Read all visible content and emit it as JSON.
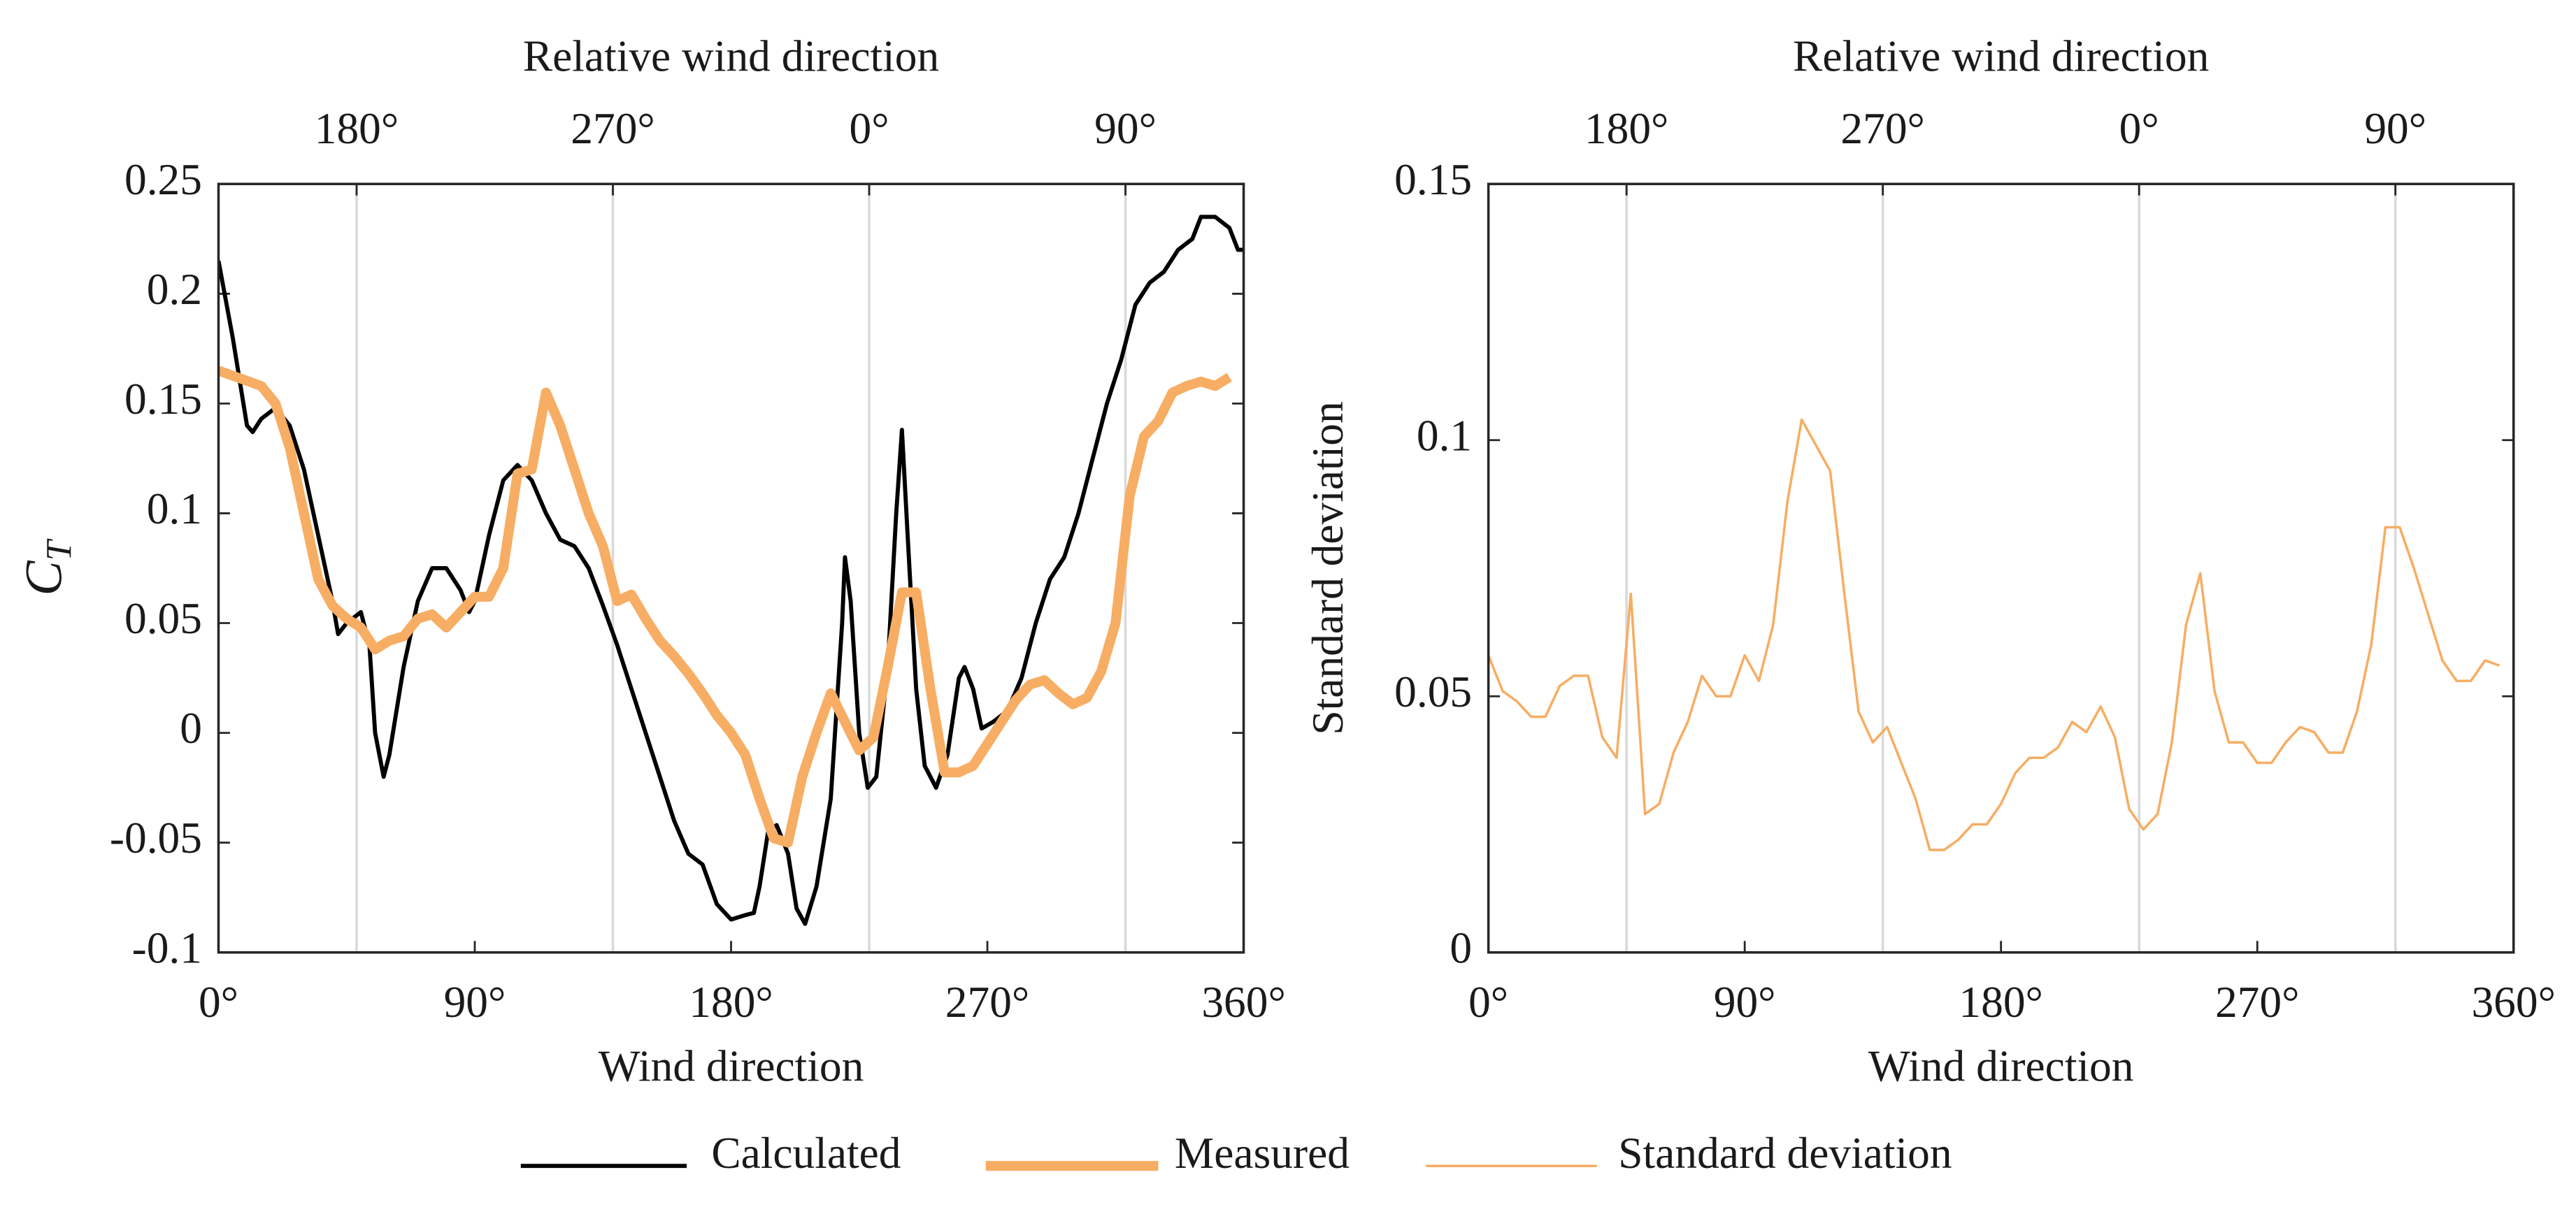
{
  "chart_data": [
    {
      "type": "line",
      "x2label": "Relative wind direction",
      "xlabel": "Wind direction",
      "ylabel": {
        "text": "C",
        "subscript": "T"
      },
      "xlim": [
        0,
        360
      ],
      "ylim": [
        -0.1,
        0.25
      ],
      "xticks": [
        {
          "value": 0,
          "label": "0°"
        },
        {
          "value": 90,
          "label": "90°"
        },
        {
          "value": 180,
          "label": "180°"
        },
        {
          "value": 270,
          "label": "270°"
        },
        {
          "value": 360,
          "label": "360°"
        }
      ],
      "x2ticks": [
        {
          "value": 48.5,
          "label": "180°"
        },
        {
          "value": 138.5,
          "label": "270°"
        },
        {
          "value": 228.5,
          "label": "0°"
        },
        {
          "value": 318.5,
          "label": "90°"
        }
      ],
      "yticks": [
        -0.1,
        -0.05,
        0,
        0.05,
        0.1,
        0.15,
        0.2,
        0.25
      ],
      "grid": "x2",
      "series": [
        {
          "name": "Calculated",
          "color": "#000000",
          "linewidth": 2.5,
          "x": [
            0,
            5,
            10,
            12,
            15,
            20,
            25,
            30,
            35,
            40,
            42,
            45,
            50,
            53,
            55,
            58,
            60,
            65,
            70,
            75,
            80,
            85,
            88,
            90,
            95,
            100,
            105,
            110,
            115,
            120,
            125,
            130,
            135,
            140,
            145,
            150,
            155,
            160,
            165,
            170,
            175,
            180,
            185,
            188,
            190,
            193,
            196,
            200,
            203,
            206,
            210,
            215,
            219,
            220,
            222,
            225,
            228,
            231,
            235,
            238,
            240,
            242,
            245,
            248,
            252,
            256,
            260,
            262,
            265,
            268,
            272,
            277,
            282,
            287,
            292,
            297,
            302,
            307,
            312,
            317,
            322,
            327,
            332,
            337,
            342,
            345,
            350,
            355,
            358,
            360
          ],
          "values": [
            0.215,
            0.18,
            0.14,
            0.137,
            0.143,
            0.148,
            0.14,
            0.12,
            0.09,
            0.06,
            0.045,
            0.05,
            0.055,
            0.04,
            0.0,
            -0.02,
            -0.01,
            0.03,
            0.06,
            0.075,
            0.075,
            0.065,
            0.055,
            0.06,
            0.09,
            0.115,
            0.122,
            0.115,
            0.1,
            0.088,
            0.085,
            0.075,
            0.058,
            0.04,
            0.02,
            0.0,
            -0.02,
            -0.04,
            -0.055,
            -0.06,
            -0.078,
            -0.085,
            -0.083,
            -0.082,
            -0.07,
            -0.045,
            -0.042,
            -0.055,
            -0.08,
            -0.087,
            -0.07,
            -0.03,
            0.05,
            0.08,
            0.06,
            0.0,
            -0.025,
            -0.02,
            0.03,
            0.1,
            0.138,
            0.09,
            0.02,
            -0.015,
            -0.025,
            -0.01,
            0.025,
            0.03,
            0.02,
            0.002,
            0.005,
            0.01,
            0.025,
            0.05,
            0.07,
            0.08,
            0.1,
            0.125,
            0.15,
            0.17,
            0.195,
            0.205,
            0.21,
            0.22,
            0.225,
            0.235,
            0.235,
            0.23,
            0.22,
            0.22
          ]
        },
        {
          "name": "Measured",
          "color": "#f7ad63",
          "linewidth": 6,
          "x": [
            0,
            15,
            20,
            25,
            30,
            35,
            40,
            45,
            50,
            55,
            60,
            65,
            70,
            75,
            80,
            85,
            90,
            95,
            100,
            105,
            110,
            115,
            120,
            125,
            130,
            135,
            140,
            145,
            150,
            155,
            160,
            165,
            170,
            175,
            180,
            185,
            190,
            195,
            200,
            205,
            210,
            215,
            220,
            225,
            230,
            235,
            240,
            245,
            250,
            255,
            260,
            265,
            270,
            275,
            280,
            285,
            290,
            295,
            300,
            305,
            310,
            315,
            320,
            325,
            330,
            335,
            340,
            345,
            350,
            355
          ],
          "values": [
            0.165,
            0.158,
            0.15,
            0.13,
            0.1,
            0.07,
            0.058,
            0.052,
            0.048,
            0.038,
            0.042,
            0.044,
            0.052,
            0.054,
            0.048,
            0.055,
            0.062,
            0.062,
            0.075,
            0.118,
            0.12,
            0.155,
            0.14,
            0.12,
            0.1,
            0.085,
            0.06,
            0.063,
            0.052,
            0.042,
            0.035,
            0.027,
            0.018,
            0.008,
            0.0,
            -0.01,
            -0.03,
            -0.048,
            -0.05,
            -0.02,
            0.0,
            0.018,
            0.005,
            -0.008,
            -0.002,
            0.03,
            0.064,
            0.064,
            0.02,
            -0.018,
            -0.018,
            -0.015,
            -0.005,
            0.005,
            0.015,
            0.022,
            0.024,
            0.018,
            0.013,
            0.016,
            0.028,
            0.05,
            0.108,
            0.135,
            0.142,
            0.155,
            0.158,
            0.16,
            0.158,
            0.162
          ]
        }
      ]
    },
    {
      "type": "line",
      "x2label": "Relative wind direction",
      "xlabel": "Wind direction",
      "ylabel": "Standard deviation",
      "xlim": [
        0,
        360
      ],
      "ylim": [
        0,
        0.15
      ],
      "xticks": [
        {
          "value": 0,
          "label": "0°"
        },
        {
          "value": 90,
          "label": "90°"
        },
        {
          "value": 180,
          "label": "180°"
        },
        {
          "value": 270,
          "label": "270°"
        },
        {
          "value": 360,
          "label": "360°"
        }
      ],
      "x2ticks": [
        {
          "value": 48.5,
          "label": "180°"
        },
        {
          "value": 138.5,
          "label": "270°"
        },
        {
          "value": 228.5,
          "label": "0°"
        },
        {
          "value": 318.5,
          "label": "90°"
        }
      ],
      "yticks": [
        0,
        0.05,
        0.1,
        0.15
      ],
      "grid": "x2",
      "series": [
        {
          "name": "Standard deviation",
          "color": "#f7ad63",
          "linewidth": 1.5,
          "x": [
            0,
            5,
            10,
            15,
            20,
            25,
            30,
            35,
            40,
            45,
            50,
            55,
            60,
            65,
            70,
            75,
            80,
            85,
            90,
            95,
            100,
            105,
            110,
            115,
            120,
            125,
            130,
            135,
            140,
            145,
            150,
            155,
            160,
            165,
            170,
            175,
            180,
            185,
            190,
            195,
            200,
            205,
            210,
            215,
            220,
            225,
            230,
            235,
            240,
            245,
            250,
            255,
            260,
            265,
            270,
            275,
            280,
            285,
            290,
            295,
            300,
            305,
            310,
            315,
            320,
            325,
            330,
            335,
            340,
            345,
            350,
            355
          ],
          "values": [
            0.058,
            0.051,
            0.049,
            0.046,
            0.046,
            0.052,
            0.054,
            0.054,
            0.042,
            0.038,
            0.07,
            0.027,
            0.029,
            0.039,
            0.045,
            0.054,
            0.05,
            0.05,
            0.058,
            0.053,
            0.064,
            0.088,
            0.104,
            0.099,
            0.094,
            0.07,
            0.047,
            0.041,
            0.044,
            0.037,
            0.03,
            0.02,
            0.02,
            0.022,
            0.025,
            0.025,
            0.029,
            0.035,
            0.038,
            0.038,
            0.04,
            0.045,
            0.043,
            0.048,
            0.042,
            0.028,
            0.024,
            0.027,
            0.041,
            0.064,
            0.074,
            0.051,
            0.041,
            0.041,
            0.037,
            0.037,
            0.041,
            0.044,
            0.043,
            0.039,
            0.039,
            0.047,
            0.06,
            0.083,
            0.083,
            0.075,
            0.066,
            0.057,
            0.053,
            0.053,
            0.057,
            0.056
          ]
        }
      ]
    }
  ]
}
